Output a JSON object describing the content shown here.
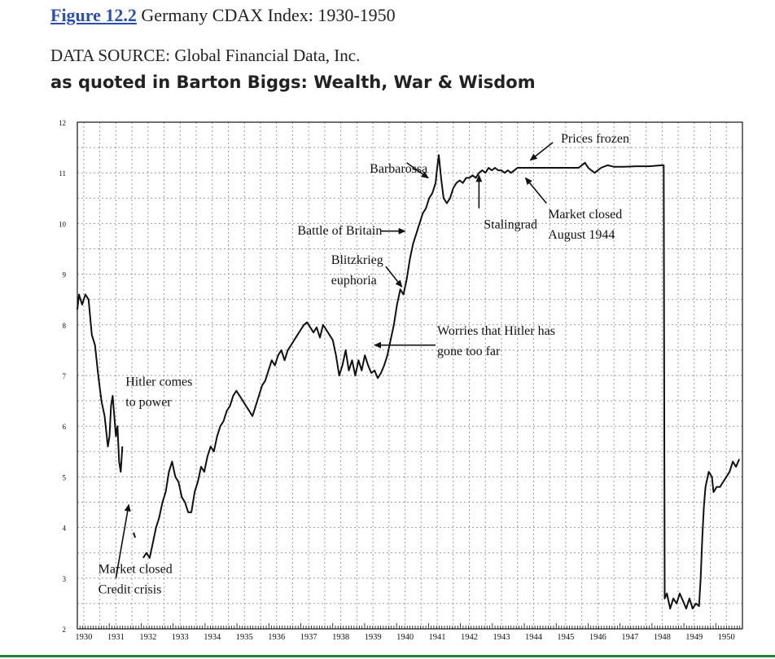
{
  "header": {
    "figure_label": "Figure 12.2",
    "title": "Germany CDAX Index: 1930-1950",
    "source": "DATA SOURCE: Global Financial Data, Inc.",
    "quoted": "as quoted in Barton Biggs: Wealth, War & Wisdom"
  },
  "colors": {
    "figure_label": "#2a4fb0",
    "line": "#111111",
    "grid": "#9a9a9a",
    "bottom_rule": "#2e7d32"
  },
  "chart_data": {
    "type": "line",
    "title": "Germany CDAX Index: 1930-1950",
    "xlabel": "",
    "ylabel": "",
    "xlim": [
      1929.8,
      1950.5
    ],
    "ylim": [
      2,
      12
    ],
    "grid": true,
    "x_tick_labels": [
      "1930",
      "1931",
      "1932",
      "1933",
      "1934",
      "1935",
      "1936",
      "1937",
      "1938",
      "1939",
      "1940",
      "1941",
      "1942",
      "1943",
      "1944",
      "1945",
      "1946",
      "1947",
      "1948",
      "1949",
      "1950"
    ],
    "y_tick_labels": [
      "2",
      "3",
      "4",
      "5",
      "6",
      "7",
      "8",
      "9",
      "10",
      "11",
      "12"
    ],
    "series": [
      {
        "name": "CDAX",
        "segments": [
          [
            [
              1929.8,
              8.3
            ],
            [
              1929.85,
              8.6
            ],
            [
              1929.95,
              8.4
            ],
            [
              1930.05,
              8.6
            ],
            [
              1930.15,
              8.5
            ],
            [
              1930.25,
              7.8
            ],
            [
              1930.35,
              7.6
            ],
            [
              1930.45,
              7.0
            ],
            [
              1930.55,
              6.5
            ],
            [
              1930.65,
              6.2
            ],
            [
              1930.75,
              5.6
            ],
            [
              1930.8,
              5.8
            ],
            [
              1930.85,
              6.4
            ],
            [
              1930.9,
              6.6
            ],
            [
              1930.95,
              6.2
            ],
            [
              1931.0,
              5.8
            ],
            [
              1931.05,
              6.0
            ],
            [
              1931.1,
              5.3
            ],
            [
              1931.15,
              5.1
            ],
            [
              1931.2,
              5.6
            ]
          ],
          [
            [
              1931.55,
              3.9
            ],
            [
              1931.6,
              3.8
            ]
          ],
          [
            [
              1931.85,
              3.4
            ],
            [
              1931.95,
              3.5
            ],
            [
              1932.05,
              3.4
            ],
            [
              1932.15,
              3.7
            ],
            [
              1932.25,
              4.0
            ],
            [
              1932.35,
              4.2
            ],
            [
              1932.45,
              4.5
            ],
            [
              1932.55,
              4.7
            ],
            [
              1932.65,
              5.1
            ],
            [
              1932.75,
              5.3
            ],
            [
              1932.85,
              5.0
            ],
            [
              1932.95,
              4.9
            ],
            [
              1933.05,
              4.6
            ],
            [
              1933.15,
              4.5
            ],
            [
              1933.25,
              4.3
            ],
            [
              1933.35,
              4.3
            ],
            [
              1933.45,
              4.7
            ],
            [
              1933.55,
              4.9
            ],
            [
              1933.65,
              5.2
            ],
            [
              1933.75,
              5.1
            ],
            [
              1933.85,
              5.4
            ],
            [
              1933.95,
              5.6
            ],
            [
              1934.05,
              5.5
            ],
            [
              1934.15,
              5.8
            ],
            [
              1934.25,
              6.0
            ],
            [
              1934.35,
              6.1
            ],
            [
              1934.45,
              6.3
            ],
            [
              1934.55,
              6.4
            ],
            [
              1934.65,
              6.6
            ],
            [
              1934.75,
              6.7
            ],
            [
              1934.85,
              6.6
            ],
            [
              1934.95,
              6.5
            ],
            [
              1935.05,
              6.4
            ],
            [
              1935.15,
              6.3
            ],
            [
              1935.25,
              6.2
            ],
            [
              1935.35,
              6.4
            ],
            [
              1935.45,
              6.6
            ],
            [
              1935.55,
              6.8
            ],
            [
              1935.65,
              6.9
            ],
            [
              1935.75,
              7.1
            ],
            [
              1935.85,
              7.3
            ],
            [
              1935.95,
              7.2
            ],
            [
              1936.05,
              7.4
            ],
            [
              1936.15,
              7.5
            ],
            [
              1936.25,
              7.3
            ],
            [
              1936.35,
              7.5
            ],
            [
              1936.45,
              7.6
            ],
            [
              1936.55,
              7.7
            ],
            [
              1936.65,
              7.8
            ],
            [
              1936.75,
              7.9
            ],
            [
              1936.85,
              8.0
            ],
            [
              1936.95,
              8.05
            ],
            [
              1937.05,
              7.95
            ],
            [
              1937.15,
              7.85
            ],
            [
              1937.25,
              7.95
            ],
            [
              1937.35,
              7.75
            ],
            [
              1937.45,
              8.0
            ],
            [
              1937.55,
              7.9
            ],
            [
              1937.65,
              7.8
            ],
            [
              1937.75,
              7.7
            ],
            [
              1937.85,
              7.4
            ],
            [
              1937.95,
              7.0
            ],
            [
              1938.05,
              7.2
            ],
            [
              1938.15,
              7.5
            ],
            [
              1938.25,
              7.1
            ],
            [
              1938.35,
              7.3
            ],
            [
              1938.45,
              7.0
            ],
            [
              1938.55,
              7.3
            ],
            [
              1938.65,
              7.1
            ],
            [
              1938.75,
              7.4
            ],
            [
              1938.85,
              7.2
            ],
            [
              1938.95,
              7.05
            ],
            [
              1939.05,
              7.1
            ],
            [
              1939.15,
              6.95
            ],
            [
              1939.25,
              7.05
            ],
            [
              1939.35,
              7.2
            ],
            [
              1939.45,
              7.4
            ],
            [
              1939.55,
              7.7
            ],
            [
              1939.65,
              8.0
            ],
            [
              1939.75,
              8.4
            ],
            [
              1939.85,
              8.7
            ],
            [
              1939.95,
              8.6
            ],
            [
              1940.05,
              8.9
            ],
            [
              1940.15,
              9.3
            ],
            [
              1940.25,
              9.6
            ],
            [
              1940.35,
              9.8
            ],
            [
              1940.45,
              10.0
            ],
            [
              1940.55,
              10.2
            ],
            [
              1940.65,
              10.3
            ],
            [
              1940.75,
              10.5
            ],
            [
              1940.85,
              10.6
            ],
            [
              1940.95,
              10.8
            ],
            [
              1941.0,
              11.1
            ],
            [
              1941.05,
              11.35
            ],
            [
              1941.12,
              10.9
            ],
            [
              1941.2,
              10.5
            ],
            [
              1941.3,
              10.4
            ],
            [
              1941.4,
              10.5
            ],
            [
              1941.5,
              10.7
            ],
            [
              1941.6,
              10.8
            ],
            [
              1941.7,
              10.85
            ],
            [
              1941.8,
              10.8
            ],
            [
              1941.9,
              10.9
            ],
            [
              1942.0,
              10.9
            ],
            [
              1942.1,
              10.95
            ],
            [
              1942.2,
              10.9
            ],
            [
              1942.3,
              11.0
            ],
            [
              1942.4,
              11.05
            ],
            [
              1942.5,
              11.0
            ],
            [
              1942.6,
              11.1
            ],
            [
              1942.7,
              11.05
            ],
            [
              1942.8,
              11.1
            ],
            [
              1942.9,
              11.05
            ],
            [
              1943.0,
              11.05
            ],
            [
              1943.1,
              11.0
            ],
            [
              1943.2,
              11.05
            ],
            [
              1943.3,
              11.0
            ],
            [
              1943.4,
              11.05
            ],
            [
              1943.5,
              11.1
            ],
            [
              1943.6,
              11.1
            ],
            [
              1943.8,
              11.1
            ],
            [
              1944.0,
              11.1
            ],
            [
              1944.3,
              11.1
            ],
            [
              1944.6,
              11.1
            ],
            [
              1945.0,
              11.1
            ],
            [
              1945.4,
              11.1
            ],
            [
              1945.6,
              11.2
            ],
            [
              1945.7,
              11.1
            ],
            [
              1945.9,
              11.0
            ],
            [
              1946.1,
              11.1
            ],
            [
              1946.3,
              11.15
            ],
            [
              1946.5,
              11.12
            ],
            [
              1946.8,
              11.12
            ],
            [
              1947.2,
              11.13
            ],
            [
              1947.6,
              11.13
            ],
            [
              1948.0,
              11.15
            ],
            [
              1948.05,
              11.15
            ],
            [
              1948.08,
              2.6
            ],
            [
              1948.15,
              2.7
            ],
            [
              1948.25,
              2.4
            ],
            [
              1948.35,
              2.6
            ],
            [
              1948.45,
              2.5
            ],
            [
              1948.55,
              2.7
            ],
            [
              1948.65,
              2.55
            ],
            [
              1948.75,
              2.4
            ],
            [
              1948.85,
              2.6
            ],
            [
              1948.95,
              2.4
            ],
            [
              1949.05,
              2.5
            ],
            [
              1949.15,
              2.45
            ],
            [
              1949.2,
              3.0
            ],
            [
              1949.25,
              3.8
            ],
            [
              1949.3,
              4.4
            ],
            [
              1949.35,
              4.8
            ],
            [
              1949.45,
              5.1
            ],
            [
              1949.55,
              5.0
            ],
            [
              1949.6,
              4.7
            ],
            [
              1949.7,
              4.8
            ],
            [
              1949.8,
              4.8
            ],
            [
              1949.9,
              4.9
            ],
            [
              1950.0,
              5.0
            ],
            [
              1950.1,
              5.1
            ],
            [
              1950.2,
              5.3
            ],
            [
              1950.3,
              5.2
            ],
            [
              1950.4,
              5.35
            ]
          ]
        ]
      }
    ],
    "annotations": [
      {
        "text": "Hitler comes",
        "x": 1931.3,
        "y": 6.8
      },
      {
        "text": "to power",
        "x": 1931.3,
        "y": 6.4
      },
      {
        "text": "Market closed",
        "x": 1930.45,
        "y": 3.1
      },
      {
        "text": "Credit crisis",
        "x": 1930.45,
        "y": 2.7
      },
      {
        "text": "Barbarossa",
        "x": 1938.9,
        "y": 11.0
      },
      {
        "text": "Battle of Britain",
        "x": 1936.65,
        "y": 9.78
      },
      {
        "text": "Blitzkrieg",
        "x": 1937.7,
        "y": 9.2
      },
      {
        "text": "euphoria",
        "x": 1937.7,
        "y": 8.8
      },
      {
        "text": "Worries that Hitler has",
        "x": 1941.0,
        "y": 7.8
      },
      {
        "text": "gone too far",
        "x": 1941.0,
        "y": 7.4
      },
      {
        "text": "Stalingrad",
        "x": 1942.45,
        "y": 9.9
      },
      {
        "text": "Prices frozen",
        "x": 1944.85,
        "y": 11.6
      },
      {
        "text": "Market closed",
        "x": 1944.45,
        "y": 10.1
      },
      {
        "text": "August 1944",
        "x": 1944.45,
        "y": 9.7
      }
    ],
    "arrows": [
      {
        "name": "arrow-hitler",
        "from": [
          1931.0,
          3.0
        ],
        "to": [
          1931.4,
          4.45
        ]
      },
      {
        "name": "arrow-barbarossa",
        "from": [
          1940.05,
          11.2
        ],
        "to": [
          1940.72,
          10.9
        ]
      },
      {
        "name": "arrow-battle-of-britain",
        "from": [
          1939.25,
          9.85
        ],
        "to": [
          1940.0,
          9.85
        ]
      },
      {
        "name": "arrow-blitzkrieg",
        "from": [
          1939.4,
          9.15
        ],
        "to": [
          1939.9,
          8.75
        ]
      },
      {
        "name": "arrow-worries",
        "from": [
          1940.95,
          7.6
        ],
        "to": [
          1939.05,
          7.6
        ]
      },
      {
        "name": "arrow-stalingrad",
        "from": [
          1942.3,
          10.3
        ],
        "to": [
          1942.3,
          10.95
        ]
      },
      {
        "name": "arrow-prices-frozen",
        "from": [
          1944.6,
          11.6
        ],
        "to": [
          1943.9,
          11.25
        ]
      },
      {
        "name": "arrow-market-closed",
        "from": [
          1944.4,
          10.4
        ],
        "to": [
          1943.75,
          10.9
        ]
      }
    ]
  }
}
